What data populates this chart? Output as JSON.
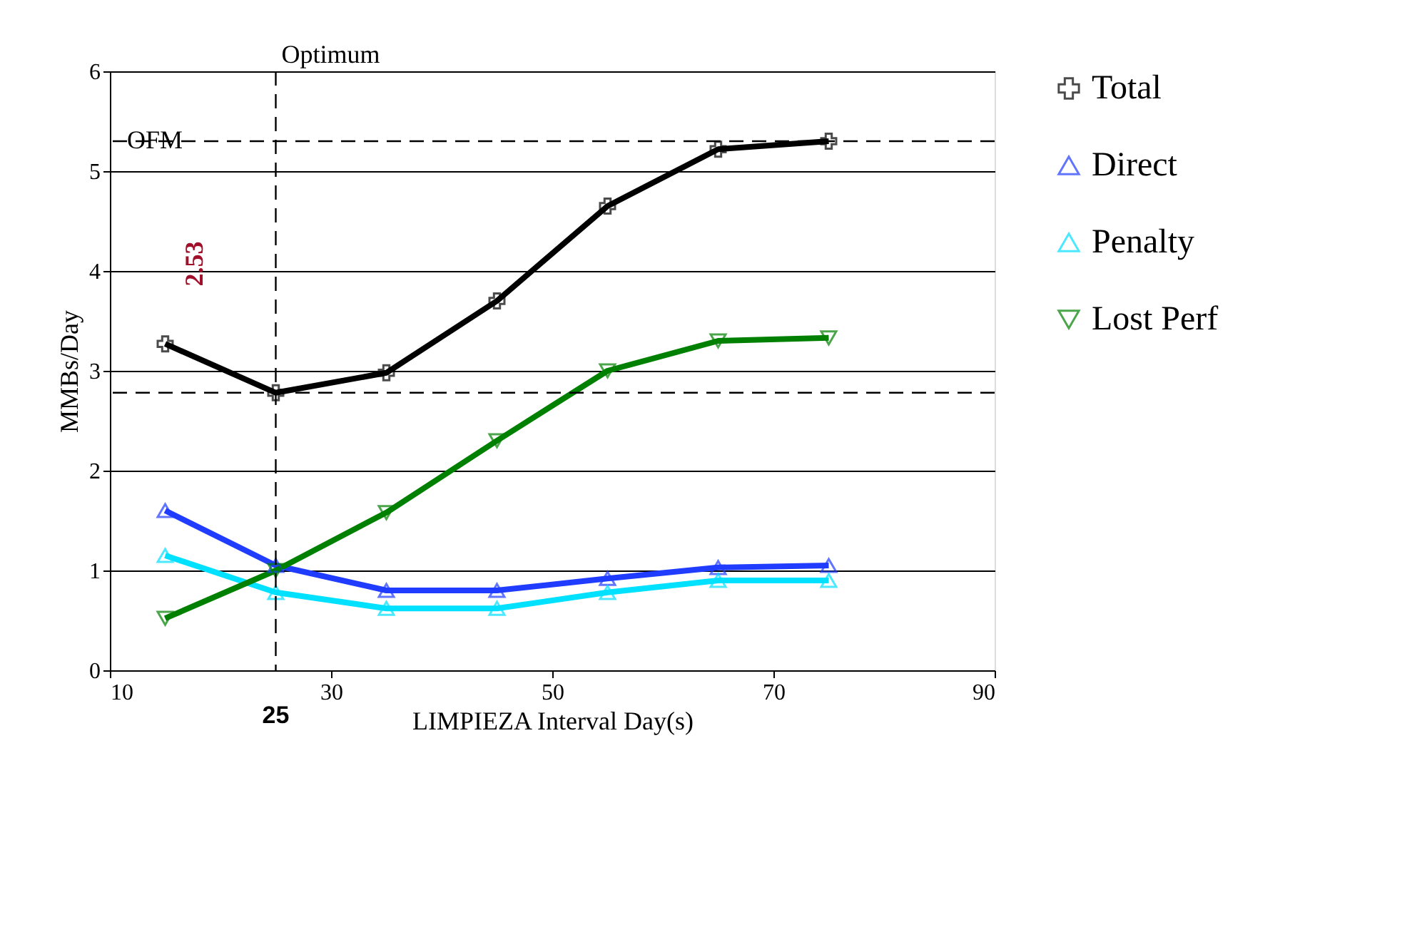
{
  "chart_data": {
    "type": "line",
    "xlabel": "LIMPIEZA Interval Day(s)",
    "ylabel": "MMBs/Day",
    "x": [
      15,
      25,
      35,
      45,
      55,
      65,
      75
    ],
    "series": [
      {
        "name": "Total",
        "color": "#000000",
        "marker": "cross",
        "values": [
          3.27,
          2.78,
          2.98,
          3.7,
          4.65,
          5.22,
          5.3
        ]
      },
      {
        "name": "Direct",
        "color": "#1f3cff",
        "marker": "triangle",
        "values": [
          1.6,
          1.05,
          0.8,
          0.8,
          0.92,
          1.03,
          1.05
        ]
      },
      {
        "name": "Penalty",
        "color": "#00e0ff",
        "marker": "triangle",
        "values": [
          1.15,
          0.78,
          0.62,
          0.62,
          0.78,
          0.9,
          0.9
        ]
      },
      {
        "name": "Lost Perf",
        "color": "#008000",
        "marker": "triangle-down",
        "values": [
          0.52,
          1.0,
          1.58,
          2.3,
          3.0,
          3.3,
          3.33
        ]
      }
    ],
    "xlim": [
      10,
      90
    ],
    "xticks": [
      10,
      30,
      50,
      70,
      90
    ],
    "ylim": [
      0,
      6
    ],
    "yticks": [
      0,
      1,
      2,
      3,
      4,
      5,
      6
    ],
    "grid": "y",
    "legend": "right",
    "ref_lines": [
      {
        "axis": "x",
        "value": 25,
        "label": "Optimum",
        "line_style": "dashed"
      },
      {
        "axis": "y",
        "value": 5.3,
        "label": "OFM",
        "line_style": "dashed"
      },
      {
        "axis": "y",
        "value": 2.78,
        "line_style": "dashed"
      }
    ],
    "annotations": [
      {
        "text": "25",
        "x": 25,
        "y": 0
      },
      "2.53"
    ]
  }
}
